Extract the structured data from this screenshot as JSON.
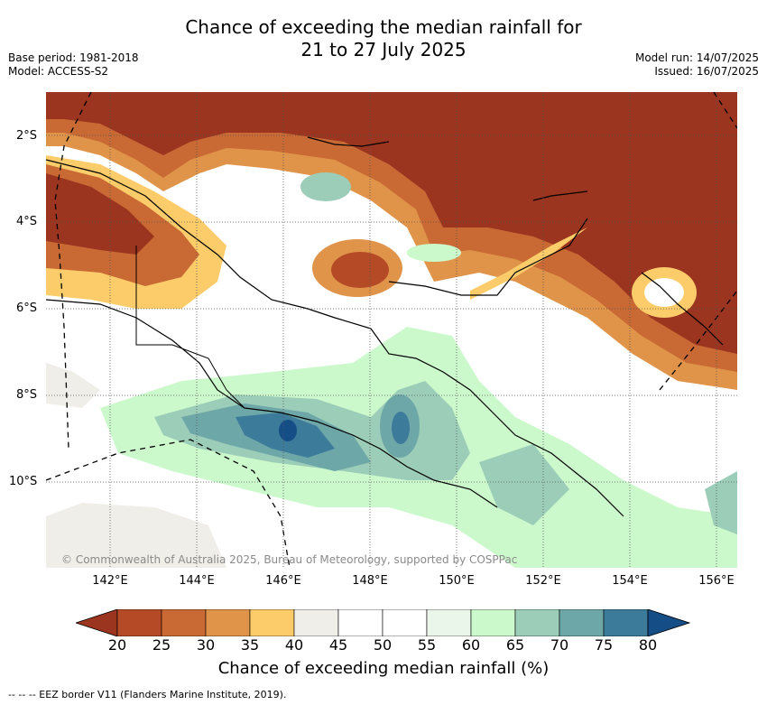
{
  "title_line1": "Chance of exceeding the median rainfall for",
  "title_line2": "21 to 27 July 2025",
  "base_period": "Base period: 1981-2018",
  "model": "Model: ACCESS-S2",
  "model_run": "Model run: 14/07/2025",
  "issued": "Issued: 16/07/2025",
  "copyright": "© Commonwealth of Australia 2025, Bureau of Meteorology, supported by COSPPac",
  "lat_labels": [
    "2°S",
    "4°S",
    "6°S",
    "8°S",
    "10°S"
  ],
  "lon_labels": [
    "142°E",
    "144°E",
    "146°E",
    "148°E",
    "150°E",
    "152°E",
    "154°E",
    "156°E"
  ],
  "colorbar": {
    "title": "Chance of exceeding median rainfall (%)",
    "ticks": [
      "20",
      "25",
      "30",
      "35",
      "40",
      "45",
      "50",
      "55",
      "60",
      "65",
      "70",
      "75",
      "80"
    ],
    "colors": [
      "#9b3520",
      "#b54a26",
      "#c96a34",
      "#e0944a",
      "#fdcc6a",
      "#f0eee8",
      "#ffffff",
      "#ffffff",
      "#eaf6ea",
      "#ccf9cc",
      "#9ccdb8",
      "#6ea7a8",
      "#3d7b9a",
      "#154e86"
    ]
  },
  "footer": "-- -- -- EEZ border V11 (Flanders Marine Institute, 2019)."
}
